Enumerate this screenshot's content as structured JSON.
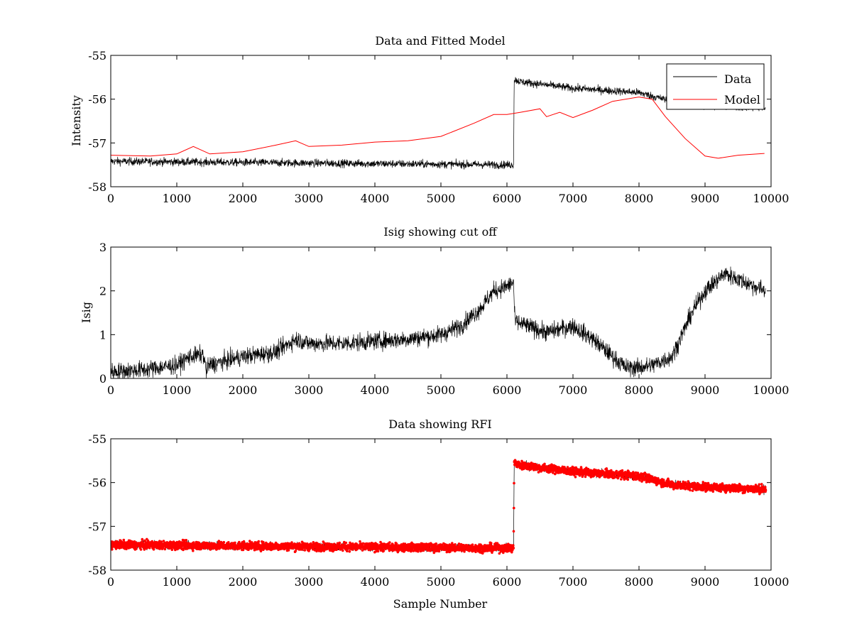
{
  "chart_data": [
    {
      "type": "line",
      "title": "Data and Fitted Model",
      "xlabel": "",
      "ylabel": "Intensity",
      "xlim": [
        0,
        10000
      ],
      "ylim": [
        -58,
        -55
      ],
      "xticks": [
        0,
        1000,
        2000,
        3000,
        4000,
        5000,
        6000,
        7000,
        8000,
        9000,
        10000
      ],
      "yticks": [
        -58,
        -57,
        -56,
        -55
      ],
      "ytick_labels": [
        "-58",
        "-57",
        "-56",
        "-55"
      ],
      "grid": false,
      "legend": {
        "placement": "top-right",
        "entries": [
          "Data",
          "Model"
        ]
      },
      "series": [
        {
          "name": "Data",
          "color": "#000000",
          "style": "noisy-line",
          "x_end": 9920,
          "trend_x": [
            0,
            6100,
            6110,
            6200,
            7000,
            8000,
            8500,
            9000,
            9920
          ],
          "trend_y": [
            -57.42,
            -57.5,
            -55.55,
            -55.6,
            -55.75,
            -55.85,
            -56.05,
            -56.15,
            -56.2
          ],
          "noise": 0.09
        },
        {
          "name": "Model",
          "color": "#ff0000",
          "style": "line",
          "x": [
            0,
            600,
            1000,
            1250,
            1500,
            2000,
            2500,
            2800,
            3000,
            3500,
            4000,
            4500,
            5000,
            5500,
            5800,
            6000,
            6200,
            6500,
            6600,
            6800,
            7000,
            7300,
            7600,
            8000,
            8200,
            8400,
            8700,
            9000,
            9200,
            9500,
            9900
          ],
          "y": [
            -57.28,
            -57.3,
            -57.25,
            -57.08,
            -57.25,
            -57.2,
            -57.05,
            -56.95,
            -57.08,
            -57.05,
            -56.98,
            -56.95,
            -56.85,
            -56.55,
            -56.35,
            -56.35,
            -56.3,
            -56.22,
            -56.4,
            -56.3,
            -56.42,
            -56.25,
            -56.05,
            -55.95,
            -56.0,
            -56.4,
            -56.9,
            -57.3,
            -57.35,
            -57.28,
            -57.24
          ]
        }
      ]
    },
    {
      "type": "line",
      "title": "Isig showing cut off",
      "xlabel": "",
      "ylabel": "Isig",
      "xlim": [
        0,
        10000
      ],
      "ylim": [
        0,
        3
      ],
      "xticks": [
        0,
        1000,
        2000,
        3000,
        4000,
        5000,
        6000,
        7000,
        8000,
        9000,
        10000
      ],
      "yticks": [
        0,
        1,
        2,
        3
      ],
      "ytick_labels": [
        "0",
        "1",
        "2",
        "3"
      ],
      "grid": false,
      "series": [
        {
          "name": "Isig",
          "color": "#000000",
          "style": "noisy-line",
          "x_end": 9920,
          "trend_x": [
            0,
            500,
            1000,
            1200,
            1400,
            1450,
            1480,
            2000,
            2500,
            2800,
            3000,
            3500,
            4000,
            4500,
            5000,
            5300,
            5600,
            5800,
            6000,
            6100,
            6120,
            6300,
            6600,
            7000,
            7300,
            7600,
            7800,
            8000,
            8200,
            8500,
            8800,
            9000,
            9300,
            9600,
            9920
          ],
          "trend_y": [
            0.15,
            0.2,
            0.3,
            0.5,
            0.55,
            0.15,
            0.3,
            0.5,
            0.6,
            0.9,
            0.8,
            0.8,
            0.85,
            0.9,
            1.0,
            1.2,
            1.6,
            2.0,
            2.1,
            2.2,
            1.3,
            1.2,
            1.05,
            1.2,
            0.9,
            0.5,
            0.25,
            0.25,
            0.3,
            0.5,
            1.5,
            2.0,
            2.4,
            2.2,
            2.0
          ],
          "noise": 0.2
        }
      ]
    },
    {
      "type": "scatter",
      "title": "Data showing RFI",
      "xlabel": "Sample Number",
      "ylabel": "",
      "xlim": [
        0,
        10000
      ],
      "ylim": [
        -58,
        -55
      ],
      "xticks": [
        0,
        1000,
        2000,
        3000,
        4000,
        5000,
        6000,
        7000,
        8000,
        9000,
        10000
      ],
      "yticks": [
        -58,
        -57,
        -56,
        -55
      ],
      "ytick_labels": [
        "-58",
        "-57",
        "-56",
        "-55"
      ],
      "grid": false,
      "series": [
        {
          "name": "Data",
          "color": "#000000",
          "style": "noisy-line",
          "x_end": 9920,
          "trend_x": [
            0,
            6100,
            6110,
            6200,
            7000,
            8000,
            8500,
            9000,
            9920
          ],
          "trend_y": [
            -57.42,
            -57.5,
            -55.55,
            -55.6,
            -55.75,
            -55.85,
            -56.05,
            -56.1,
            -56.15
          ],
          "noise": 0.09
        },
        {
          "name": "RFI",
          "color": "#ff0000",
          "style": "markers",
          "x_end": 9920,
          "trend_x": [
            0,
            6100,
            6110,
            6200,
            7000,
            8000,
            8500,
            9000,
            9920
          ],
          "trend_y": [
            -57.42,
            -57.5,
            -55.55,
            -55.6,
            -55.75,
            -55.85,
            -56.05,
            -56.1,
            -56.15
          ],
          "noise": 0.09
        }
      ]
    }
  ]
}
